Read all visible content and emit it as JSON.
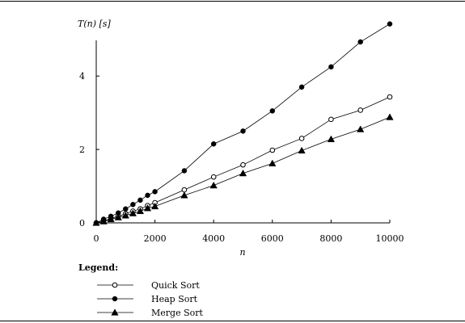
{
  "chart_data": {
    "type": "line",
    "ylabel": "T(n) [s]",
    "xlabel": "n",
    "xlim": [
      0,
      10000
    ],
    "ylim": [
      0,
      5.5
    ],
    "xticks": [
      "0",
      "2000",
      "4000",
      "6000",
      "8000",
      "10000"
    ],
    "yticks": [
      "0",
      "2",
      "4"
    ],
    "grid": false,
    "legend_title": "Legend:",
    "legend_position": "bottom-left",
    "x": [
      0,
      250,
      500,
      750,
      1000,
      1250,
      1500,
      1750,
      2000,
      3000,
      4000,
      5000,
      6000,
      7000,
      8000,
      9000,
      10000
    ],
    "series": [
      {
        "name": "Quick Sort",
        "marker": "open-circle",
        "values": [
          0.0,
          0.05,
          0.12,
          0.18,
          0.25,
          0.32,
          0.38,
          0.47,
          0.55,
          0.9,
          1.25,
          1.58,
          1.98,
          2.3,
          2.82,
          3.07,
          3.43
        ]
      },
      {
        "name": "Heap Sort",
        "marker": "filled-circle",
        "values": [
          0.0,
          0.1,
          0.18,
          0.27,
          0.38,
          0.5,
          0.62,
          0.75,
          0.85,
          1.42,
          2.15,
          2.5,
          3.05,
          3.7,
          4.25,
          4.93,
          5.42
        ]
      },
      {
        "name": "Merge Sort",
        "marker": "filled-triangle",
        "values": [
          0.0,
          0.04,
          0.1,
          0.15,
          0.2,
          0.26,
          0.32,
          0.4,
          0.45,
          0.75,
          1.02,
          1.35,
          1.62,
          1.97,
          2.28,
          2.55,
          2.88
        ]
      }
    ]
  }
}
